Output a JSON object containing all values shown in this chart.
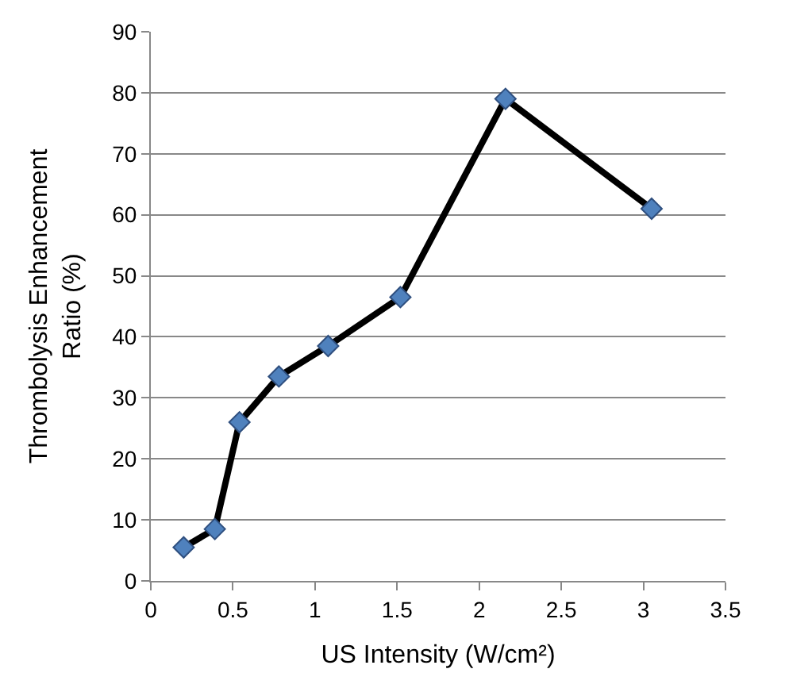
{
  "chart_data": {
    "type": "line",
    "xlabel": "US Intensity (W/cm²)",
    "ylabel": "Thrombolysis Enhancement\nRatio (%)",
    "x": [
      0.2,
      0.39,
      0.54,
      0.78,
      1.08,
      1.52,
      2.16,
      3.05
    ],
    "series": [
      {
        "color": "#000000",
        "colors": [
          "#4f81bd",
          "#4f81bd",
          "#4f81bd",
          "#4f81bd",
          "#4f81bd",
          "#4f81bd",
          "#4f81bd",
          "#4f81bd"
        ],
        "values": [
          5.5,
          8.5,
          26,
          33.5,
          38.5,
          46.5,
          79,
          61
        ]
      }
    ],
    "xlim": [
      0,
      3.5
    ],
    "xticks": [
      0,
      0.5,
      1,
      1.5,
      2,
      2.5,
      3,
      3.5
    ],
    "ylim": [
      0,
      90
    ],
    "yticks": [
      0,
      10,
      20,
      30,
      40,
      50,
      60,
      70,
      80,
      90
    ],
    "grid": "y",
    "legend": false,
    "marker": "diamond",
    "line_style": "solid"
  }
}
